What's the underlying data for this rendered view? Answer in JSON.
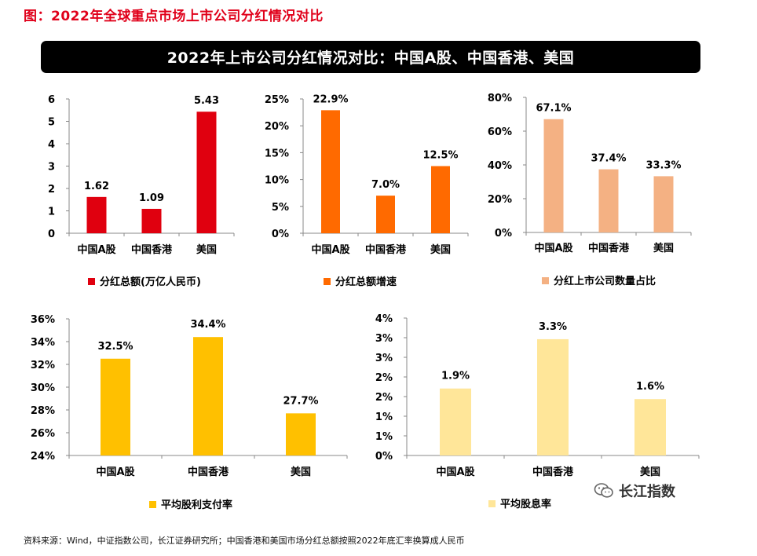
{
  "page": {
    "figure_title": "图：2022年全球重点市场上市公司分红情况对比",
    "banner_title": "2022年上市公司分红情况对比：中国A股、中国香港、美国",
    "source_note": "资料来源：Wind，中证指数公司，长江证券研究所；中国香港和美国市场分红总额按照2022年底汇率换算成人民币",
    "watermark_text": "长江指数",
    "watermark_icon": "wechat-icon"
  },
  "chart_data": [
    {
      "type": "bar",
      "categories": [
        "中国A股",
        "中国香港",
        "美国"
      ],
      "series": [
        {
          "name": "分红总额(万亿人民币)",
          "values": [
            1.62,
            1.09,
            5.43
          ],
          "labels": [
            "1.62",
            "1.09",
            "5.43"
          ]
        }
      ],
      "yticks": [
        "0",
        "1",
        "2",
        "3",
        "4",
        "5",
        "6"
      ],
      "ylim": [
        0,
        6
      ],
      "color": "#e0000f",
      "grid": false,
      "legend_position": "bottom"
    },
    {
      "type": "bar",
      "categories": [
        "中国A股",
        "中国香港",
        "美国"
      ],
      "series": [
        {
          "name": "分红总额增速",
          "values": [
            22.9,
            7.0,
            12.5
          ],
          "labels": [
            "22.9%",
            "7.0%",
            "12.5%"
          ]
        }
      ],
      "yticks": [
        "0%",
        "5%",
        "10%",
        "15%",
        "20%",
        "25%"
      ],
      "ylim": [
        0,
        25
      ],
      "color": "#ff6a00",
      "grid": false,
      "legend_position": "bottom"
    },
    {
      "type": "bar",
      "categories": [
        "中国A股",
        "中国香港",
        "美国"
      ],
      "series": [
        {
          "name": "分红上市公司数量占比",
          "values": [
            67.1,
            37.4,
            33.3
          ],
          "labels": [
            "67.1%",
            "37.4%",
            "33.3%"
          ]
        }
      ],
      "yticks": [
        "0%",
        "20%",
        "40%",
        "60%",
        "80%"
      ],
      "ylim": [
        0,
        80
      ],
      "color": "#f4b183",
      "grid": false,
      "legend_position": "bottom"
    },
    {
      "type": "bar",
      "categories": [
        "中国A股",
        "中国香港",
        "美国"
      ],
      "series": [
        {
          "name": "平均股利支付率",
          "values": [
            32.5,
            34.4,
            27.7
          ],
          "labels": [
            "32.5%",
            "34.4%",
            "27.7%"
          ]
        }
      ],
      "yticks": [
        "24%",
        "26%",
        "28%",
        "30%",
        "32%",
        "34%",
        "36%"
      ],
      "ylim": [
        24,
        36
      ],
      "color": "#ffc000",
      "grid": false,
      "legend_position": "bottom"
    },
    {
      "type": "bar",
      "categories": [
        "中国A股",
        "中国香港",
        "美国"
      ],
      "series": [
        {
          "name": "平均股息率",
          "values": [
            1.9,
            3.3,
            1.6
          ],
          "labels": [
            "1.9%",
            "3.3%",
            "1.6%"
          ]
        }
      ],
      "yticks": [
        "0%",
        "1%",
        "1%",
        "2%",
        "2%",
        "3%",
        "3%",
        "4%"
      ],
      "ylim": [
        0,
        3.9
      ],
      "color": "#ffe699",
      "grid": false,
      "legend_position": "bottom"
    }
  ]
}
